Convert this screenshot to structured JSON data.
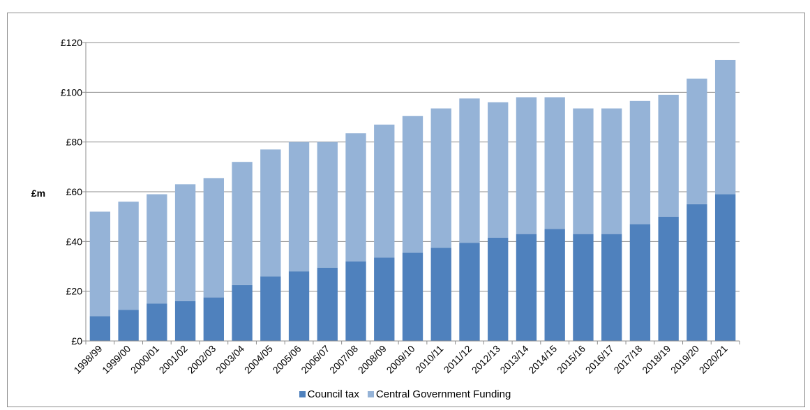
{
  "chart_data": {
    "type": "bar",
    "stacked": true,
    "title": "",
    "ylabel": "£m",
    "xlabel": "",
    "ylim": [
      0,
      120
    ],
    "yticks": [
      "£0",
      "£20",
      "£40",
      "£60",
      "£80",
      "£100",
      "£120"
    ],
    "grid": true,
    "legend_position": "bottom",
    "categories": [
      "1998/99",
      "1999/00",
      "2000/01",
      "2001/02",
      "2002/03",
      "2003/04",
      "2004/05",
      "2005/06",
      "2006/07",
      "2007/08",
      "2008/09",
      "2009/10",
      "2010/11",
      "2011/12",
      "2012/13",
      "2013/14",
      "2014/15",
      "2015/16",
      "2016/17",
      "2017/18",
      "2018/19",
      "2019/20",
      "2020/21"
    ],
    "series": [
      {
        "name": "Council tax",
        "color": "#4f81bd",
        "values": [
          10,
          12.5,
          15,
          16,
          17.5,
          22.5,
          26,
          28,
          29.5,
          32,
          33.5,
          35.5,
          37.5,
          39.5,
          41.5,
          43,
          45,
          43,
          43,
          47,
          50,
          55,
          59
        ]
      },
      {
        "name": "Central Government Funding",
        "color": "#95b3d7",
        "values": [
          42,
          43.5,
          44,
          47,
          48,
          49.5,
          51,
          52,
          50.5,
          51.5,
          53.5,
          55,
          56,
          58,
          54.5,
          55,
          53,
          50.5,
          50.5,
          49.5,
          49,
          50.5,
          54
        ]
      }
    ]
  }
}
